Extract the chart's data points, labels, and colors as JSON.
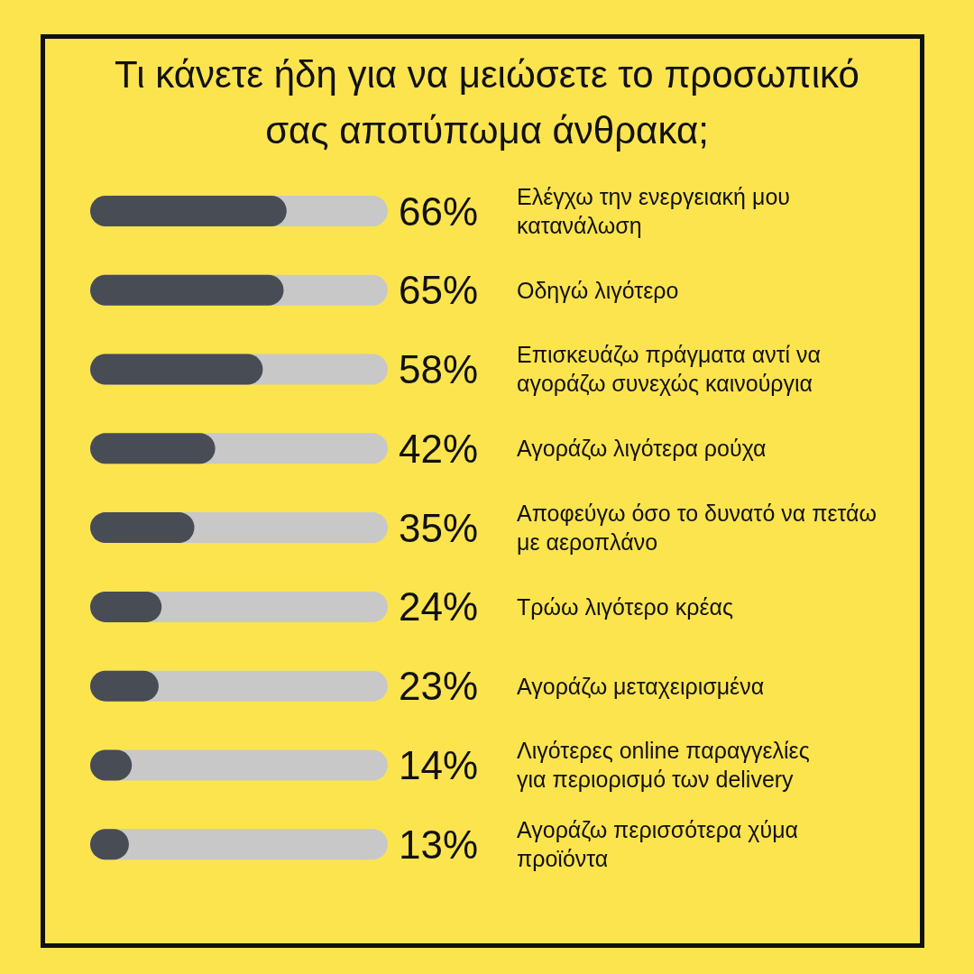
{
  "chart_data": {
    "type": "bar",
    "orientation": "horizontal",
    "title": "Τι κάνετε ήδη για να μειώσετε το προσωπικό σας αποτύπωμα άνθρακα;",
    "categories": [
      "Ελέγχω την ενεργειακή μου κατανάλωση",
      "Οδηγώ λιγότερο",
      "Επισκευάζω πράγματα αντί να αγοράζω συνεχώς καινούργια",
      "Αγοράζω λιγότερα ρούχα",
      "Αποφεύγω όσο το δυνατό να πετάω με αεροπλάνο",
      "Τρώω λιγότερο κρέας",
      "Αγοράζω μεταχειρισμένα",
      "Λιγότερες online παραγγελίες για περιορισμό των delivery",
      "Αγοράζω περισσότερα χύμα προϊόντα"
    ],
    "values": [
      66,
      65,
      58,
      42,
      35,
      24,
      23,
      14,
      13
    ],
    "value_labels": [
      "66%",
      "65%",
      "58%",
      "42%",
      "35%",
      "24%",
      "23%",
      "14%",
      "13%"
    ],
    "color": "#474c55",
    "xlim": [
      0,
      100
    ]
  }
}
